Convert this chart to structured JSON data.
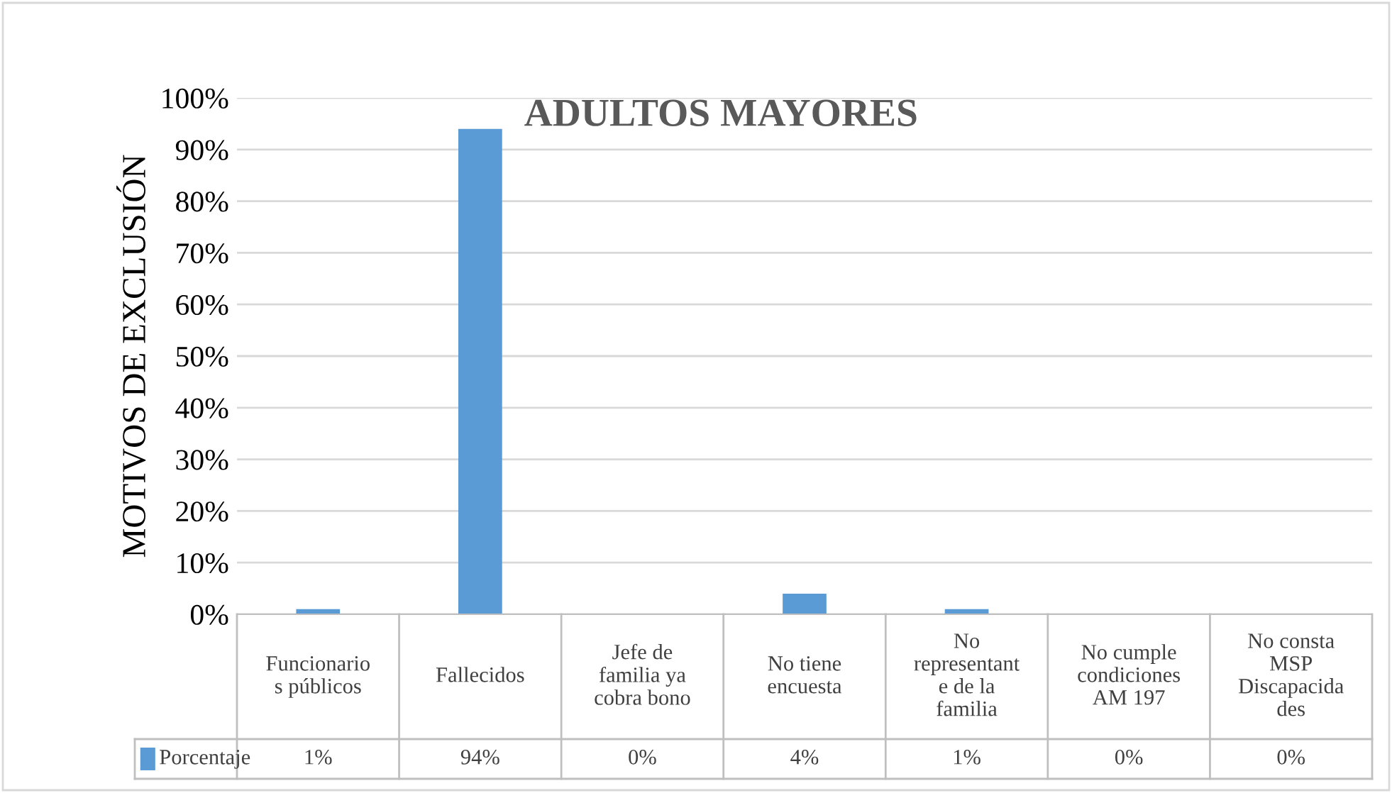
{
  "chart_data": {
    "type": "bar",
    "title": "ADULTOS MAYORES",
    "ylabel": "MOTIVOS DE EXCLUSIÓN",
    "categories": [
      "Funcionario\ns públicos",
      "Fallecidos",
      "Jefe de\nfamilia ya\ncobra bono",
      "No tiene\nencuesta",
      "No\nrepresentant\ne de la\nfamilia",
      "No cumple\ncondiciones\nAM 197",
      "No consta\nMSP\nDiscapacida\ndes"
    ],
    "series": [
      {
        "name": "Porcentaje",
        "color": "#5b9bd5",
        "values": [
          1,
          94,
          0,
          4,
          1,
          0,
          0
        ],
        "value_labels": [
          "1%",
          "94%",
          "0%",
          "4%",
          "1%",
          "0%",
          "0%"
        ]
      }
    ],
    "ylim": [
      0,
      100
    ],
    "yticks": [
      {
        "value": 0,
        "label": "0%"
      },
      {
        "value": 10,
        "label": "10%"
      },
      {
        "value": 20,
        "label": "20%"
      },
      {
        "value": 30,
        "label": "30%"
      },
      {
        "value": 40,
        "label": "40%"
      },
      {
        "value": 50,
        "label": "50%"
      },
      {
        "value": 60,
        "label": "60%"
      },
      {
        "value": 70,
        "label": "70%"
      },
      {
        "value": 80,
        "label": "80%"
      },
      {
        "value": 90,
        "label": "90%"
      },
      {
        "value": 100,
        "label": "100%"
      }
    ],
    "grid": "y",
    "legend": "bottom"
  }
}
